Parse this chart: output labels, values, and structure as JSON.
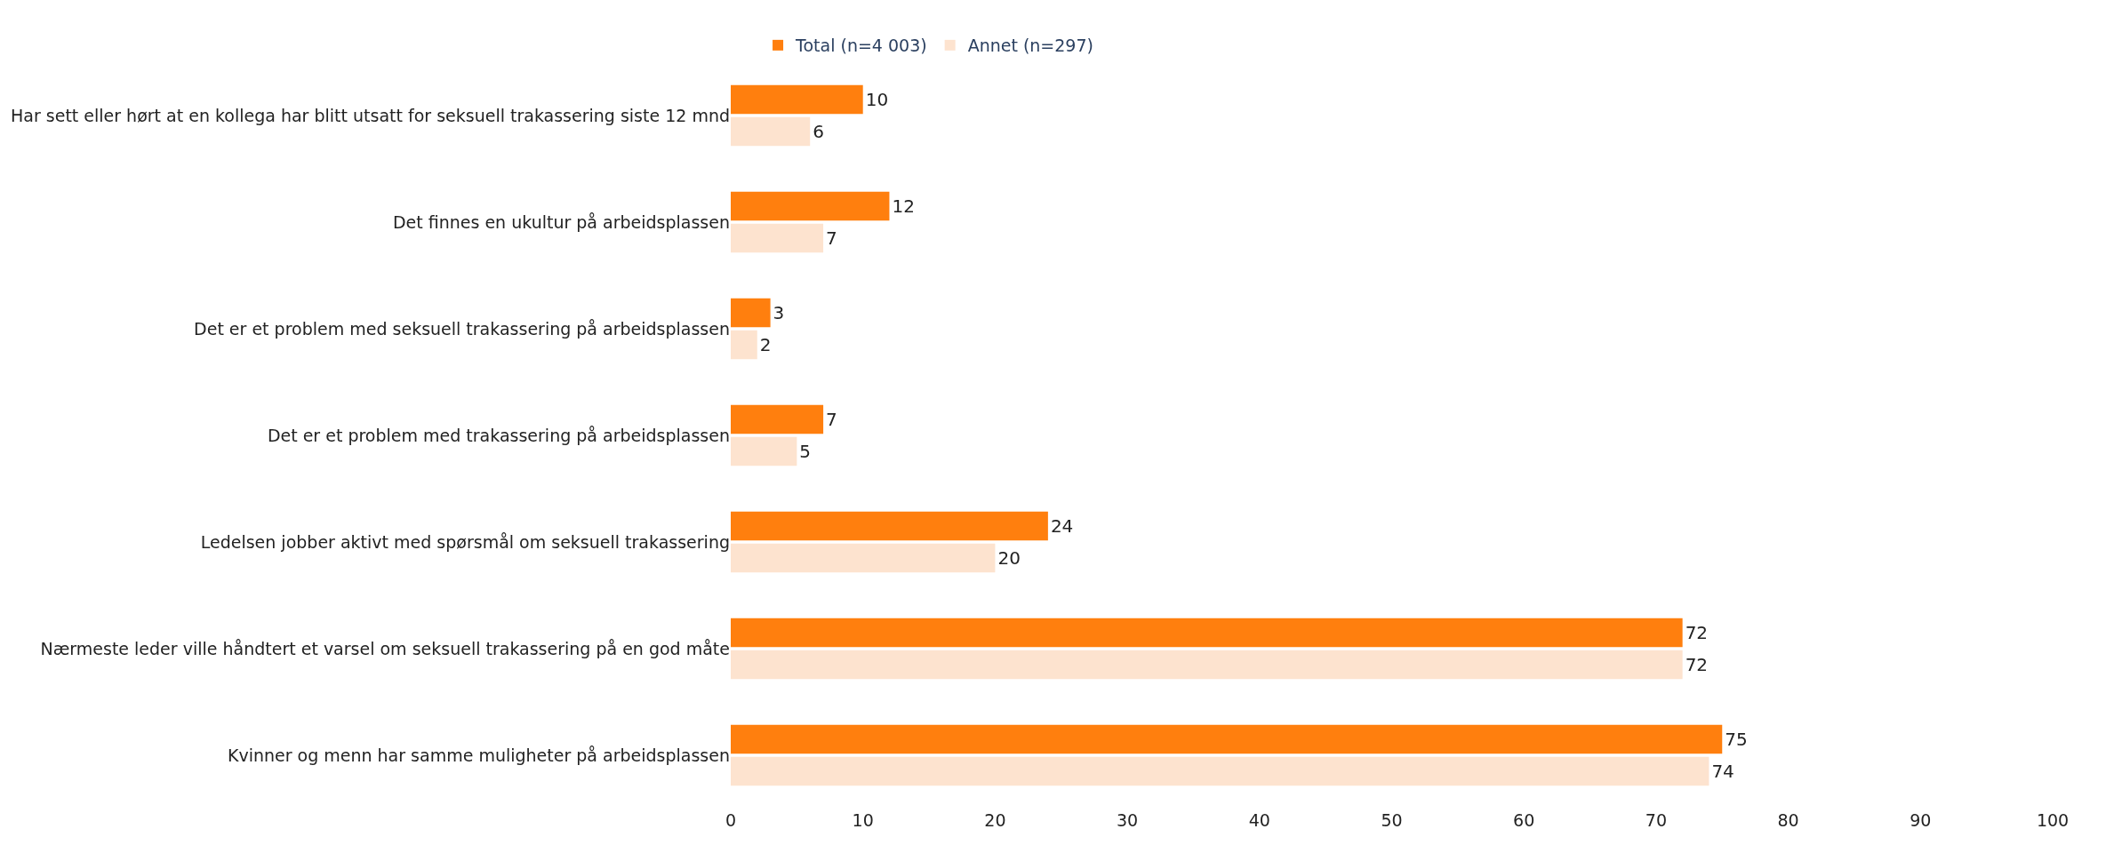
{
  "chart_data": {
    "type": "bar",
    "orientation": "horizontal",
    "categories": [
      "Har sett eller hørt at en kollega har blitt utsatt for seksuell trakassering siste 12 mnd",
      "Det finnes en ukultur på arbeidsplassen",
      "Det er et problem med seksuell trakassering på arbeidsplassen",
      "Det er et problem med trakassering på arbeidsplassen",
      "Ledelsen jobber aktivt med spørsmål om seksuell trakassering",
      "Nærmeste leder ville håndtert et varsel om seksuell trakassering på en god måte",
      "Kvinner og menn har samme muligheter på arbeidsplassen"
    ],
    "series": [
      {
        "name": "Total (n=4 003)",
        "color": "#ff7f0e",
        "values": [
          10,
          12,
          3,
          7,
          24,
          72,
          75
        ]
      },
      {
        "name": "Annet (n=297)",
        "color": "#fde3cf",
        "values": [
          6,
          7,
          2,
          5,
          20,
          72,
          74
        ]
      }
    ],
    "xlim": [
      0,
      100
    ],
    "xticks": [
      0,
      10,
      20,
      30,
      40,
      50,
      60,
      70,
      80,
      90,
      100
    ],
    "data_labels": true,
    "legend": "top"
  }
}
